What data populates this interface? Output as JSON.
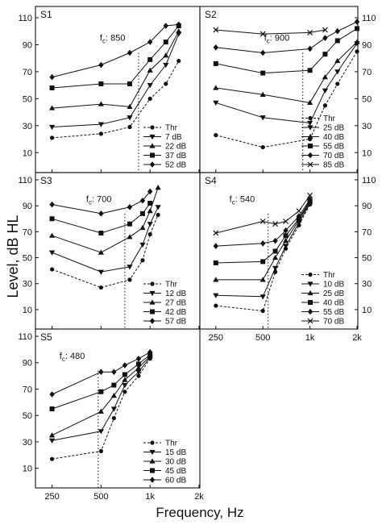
{
  "figure": {
    "ylabel": "Level, dB HL",
    "xlabel": "Frequency, Hz"
  },
  "chart_data": [
    {
      "type": "line",
      "panel": "S1",
      "fc_label": "850",
      "fc_hz": 850,
      "xscale": "log",
      "xlim": [
        200,
        2000
      ],
      "ylim": [
        0,
        110
      ],
      "xticks": [
        250,
        500,
        1000,
        2000
      ],
      "xticklabels": [
        "250",
        "500",
        "1k",
        "2k"
      ],
      "yticks": [
        10,
        30,
        50,
        70,
        90,
        110
      ],
      "tick_side": "left",
      "show_xticklabels": false,
      "legend_position": "bottom-right",
      "series": [
        {
          "name": "Thr",
          "marker": "circle",
          "dash": true,
          "x": [
            250,
            500,
            750,
            1000,
            1250,
            1500
          ],
          "y": [
            21,
            24,
            29,
            50,
            61,
            78
          ]
        },
        {
          "name": "7 dB",
          "marker": "tri-down",
          "dash": false,
          "x": [
            250,
            500,
            750,
            1000,
            1250,
            1500
          ],
          "y": [
            29,
            31,
            36,
            60,
            75,
            98
          ]
        },
        {
          "name": "22 dB",
          "marker": "tri-up",
          "dash": false,
          "x": [
            250,
            500,
            750,
            1000,
            1250,
            1500
          ],
          "y": [
            43,
            46,
            44,
            71,
            82,
            100
          ]
        },
        {
          "name": "37 dB",
          "marker": "square",
          "dash": false,
          "x": [
            250,
            500,
            750,
            1000,
            1250,
            1500
          ],
          "y": [
            58,
            61,
            61,
            79,
            92,
            104
          ]
        },
        {
          "name": "52 dB",
          "marker": "diamond",
          "dash": false,
          "x": [
            250,
            500,
            750,
            1000,
            1250,
            1500
          ],
          "y": [
            66,
            75,
            84,
            92,
            104,
            105
          ]
        }
      ]
    },
    {
      "type": "line",
      "panel": "S2",
      "fc_label": "900",
      "fc_hz": 900,
      "xscale": "log",
      "xlim": [
        200,
        2000
      ],
      "ylim": [
        0,
        110
      ],
      "xticks": [
        250,
        500,
        1000,
        2000
      ],
      "xticklabels": [
        "250",
        "500",
        "1k",
        "2k"
      ],
      "yticks": [
        10,
        30,
        50,
        70,
        90,
        110
      ],
      "tick_side": "right",
      "show_xticklabels": false,
      "legend_position": "bottom-right",
      "series": [
        {
          "name": "Thr",
          "marker": "circle",
          "dash": true,
          "x": [
            250,
            500,
            1000,
            1250,
            1500,
            2000
          ],
          "y": [
            23,
            14,
            20,
            45,
            61,
            85
          ]
        },
        {
          "name": "25 dB",
          "marker": "tri-down",
          "dash": false,
          "x": [
            250,
            500,
            1000,
            1250,
            1500,
            2000
          ],
          "y": [
            47,
            36,
            32,
            56,
            70,
            91
          ]
        },
        {
          "name": "40 dB",
          "marker": "tri-up",
          "dash": false,
          "x": [
            250,
            500,
            1000,
            1250,
            1500,
            2000
          ],
          "y": [
            58,
            53,
            47,
            66,
            78,
            92
          ]
        },
        {
          "name": "55 dB",
          "marker": "square",
          "dash": false,
          "x": [
            250,
            500,
            1000,
            1250,
            1500,
            2000
          ],
          "y": [
            76,
            69,
            71,
            83,
            93,
            102
          ]
        },
        {
          "name": "70 dB",
          "marker": "diamond",
          "dash": false,
          "x": [
            250,
            500,
            1000,
            1250,
            1500,
            2000
          ],
          "y": [
            88,
            84,
            87,
            95,
            100,
            107
          ]
        },
        {
          "name": "85 dB",
          "marker": "cross",
          "dash": false,
          "x": [
            250,
            500,
            1000,
            1250
          ],
          "y": [
            101,
            98,
            99,
            101
          ]
        }
      ]
    },
    {
      "type": "line",
      "panel": "S3",
      "fc_label": "700",
      "fc_hz": 700,
      "xscale": "log",
      "xlim": [
        200,
        2000
      ],
      "ylim": [
        0,
        110
      ],
      "xticks": [
        250,
        500,
        1000,
        2000
      ],
      "xticklabels": [
        "250",
        "500",
        "1k",
        "2k"
      ],
      "yticks": [
        10,
        30,
        50,
        70,
        90,
        110
      ],
      "tick_side": "left",
      "show_xticklabels": false,
      "legend_position": "bottom-right",
      "series": [
        {
          "name": "Thr",
          "marker": "circle",
          "dash": true,
          "x": [
            250,
            500,
            750,
            900,
            1000,
            1120
          ],
          "y": [
            41,
            27,
            33,
            48,
            68,
            83
          ]
        },
        {
          "name": "12 dB",
          "marker": "tri-down",
          "dash": false,
          "x": [
            250,
            500,
            750,
            900,
            1000,
            1120
          ],
          "y": [
            54,
            39,
            43,
            60,
            76,
            89
          ]
        },
        {
          "name": "27 dB",
          "marker": "tri-up",
          "dash": false,
          "x": [
            250,
            500,
            750,
            900,
            1000,
            1120
          ],
          "y": [
            67,
            54,
            66,
            73,
            86,
            104
          ]
        },
        {
          "name": "42 dB",
          "marker": "square",
          "dash": false,
          "x": [
            250,
            500,
            750,
            900,
            1000
          ],
          "y": [
            80,
            69,
            76,
            84,
            92
          ]
        },
        {
          "name": "57 dB",
          "marker": "diamond",
          "dash": false,
          "x": [
            250,
            500,
            750,
            900,
            1000
          ],
          "y": [
            91,
            84,
            89,
            94,
            101
          ]
        }
      ]
    },
    {
      "type": "line",
      "panel": "S4",
      "fc_label": "540",
      "fc_hz": 540,
      "xscale": "log",
      "xlim": [
        200,
        2000
      ],
      "ylim": [
        0,
        110
      ],
      "xticks": [
        250,
        500,
        1000,
        2000
      ],
      "xticklabels": [
        "250",
        "500",
        "1k",
        "2k"
      ],
      "yticks": [
        10,
        30,
        50,
        70,
        90,
        110
      ],
      "tick_side": "right",
      "show_xticklabels": true,
      "legend_position": "bottom-right",
      "series": [
        {
          "name": "Thr",
          "marker": "circle",
          "dash": true,
          "x": [
            250,
            500,
            600,
            700,
            850,
            1000
          ],
          "y": [
            13,
            9,
            39,
            57,
            75,
            91
          ]
        },
        {
          "name": "10 dB",
          "marker": "tri-down",
          "dash": false,
          "x": [
            250,
            500,
            600,
            700,
            850,
            1000
          ],
          "y": [
            21,
            20,
            42,
            59,
            77,
            92
          ]
        },
        {
          "name": "25 dB",
          "marker": "tri-up",
          "dash": false,
          "x": [
            250,
            500,
            600,
            700,
            850,
            1000
          ],
          "y": [
            33,
            33,
            50,
            63,
            79,
            93
          ]
        },
        {
          "name": "40 dB",
          "marker": "square",
          "dash": false,
          "x": [
            250,
            500,
            600,
            700,
            850,
            1000
          ],
          "y": [
            46,
            47,
            55,
            67,
            80,
            94
          ]
        },
        {
          "name": "55 dB",
          "marker": "diamond",
          "dash": false,
          "x": [
            250,
            500,
            600,
            700,
            850,
            1000
          ],
          "y": [
            59,
            61,
            63,
            71,
            82,
            95
          ]
        },
        {
          "name": "70 dB",
          "marker": "cross",
          "dash": false,
          "x": [
            250,
            500,
            600,
            700,
            850,
            1000
          ],
          "y": [
            69,
            78,
            76,
            78,
            86,
            98
          ]
        }
      ]
    },
    {
      "type": "line",
      "panel": "S5",
      "fc_label": "480",
      "fc_hz": 480,
      "xscale": "log",
      "xlim": [
        200,
        2000
      ],
      "ylim": [
        0,
        110
      ],
      "xticks": [
        250,
        500,
        1000,
        2000
      ],
      "xticklabels": [
        "250",
        "500",
        "1k",
        "2k"
      ],
      "yticks": [
        10,
        30,
        50,
        70,
        90,
        110
      ],
      "tick_side": "left",
      "show_xticklabels": true,
      "legend_position": "bottom-right",
      "series": [
        {
          "name": "Thr",
          "marker": "circle",
          "dash": true,
          "x": [
            250,
            500,
            600,
            700,
            850,
            1000
          ],
          "y": [
            17,
            23,
            48,
            68,
            80,
            93
          ]
        },
        {
          "name": "15 dB",
          "marker": "tri-down",
          "dash": false,
          "x": [
            250,
            500,
            600,
            700,
            850,
            1000
          ],
          "y": [
            31,
            38,
            55,
            73,
            83,
            94
          ]
        },
        {
          "name": "30 dB",
          "marker": "tri-up",
          "dash": false,
          "x": [
            250,
            500,
            600,
            700,
            850,
            1000
          ],
          "y": [
            35,
            53,
            65,
            77,
            86,
            95
          ]
        },
        {
          "name": "45 dB",
          "marker": "square",
          "dash": false,
          "x": [
            250,
            500,
            600,
            700,
            850,
            1000
          ],
          "y": [
            55,
            68,
            73,
            81,
            89,
            96
          ]
        },
        {
          "name": "60 dB",
          "marker": "diamond",
          "dash": false,
          "x": [
            250,
            500,
            600,
            700,
            850,
            1000
          ],
          "y": [
            66,
            83,
            83,
            88,
            93,
            98
          ]
        }
      ]
    }
  ]
}
